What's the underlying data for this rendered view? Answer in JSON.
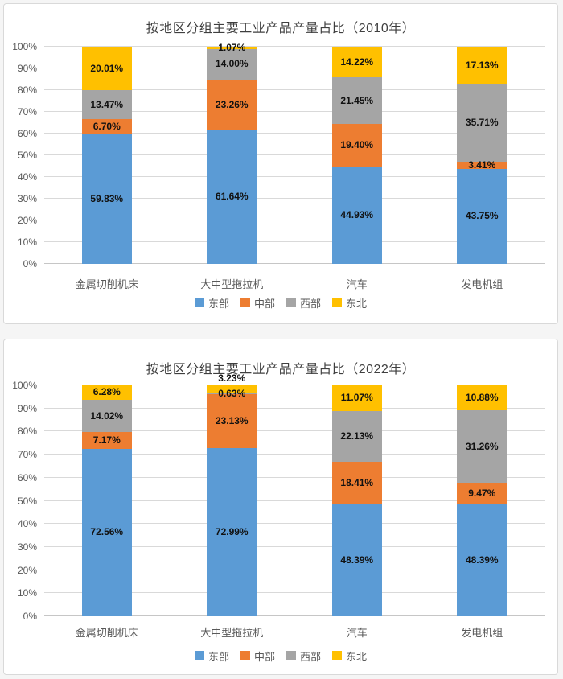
{
  "page": {
    "background": "#f5f5f5",
    "panel_background": "#ffffff",
    "panel_border": "#d9d9d9",
    "gridline_color": "#d9d9d9",
    "axis_text_color": "#595959",
    "title_text_color": "#3f3f3f",
    "data_label_color": "#111111"
  },
  "chart_data": [
    {
      "type": "bar",
      "stacked": true,
      "percent_stacked": true,
      "title": "按地区分组主要工业产品产量占比（2010年）",
      "categories": [
        "金属切削机床",
        "大中型拖拉机",
        "汽车",
        "发电机组"
      ],
      "series": [
        {
          "name": "东部",
          "color": "#5B9BD5",
          "values": [
            59.83,
            61.64,
            44.93,
            43.75
          ]
        },
        {
          "name": "中部",
          "color": "#ED7D31",
          "values": [
            6.7,
            23.26,
            19.4,
            3.41
          ]
        },
        {
          "name": "西部",
          "color": "#A5A5A5",
          "values": [
            13.47,
            14.0,
            21.45,
            35.71
          ]
        },
        {
          "name": "东北",
          "color": "#FFC000",
          "values": [
            20.01,
            1.07,
            14.22,
            17.13
          ]
        }
      ],
      "xlabel": "",
      "ylabel": "",
      "ylim": [
        0,
        100
      ],
      "ytick_step": 10,
      "ytick_suffix": "%",
      "grid": true,
      "data_labels": true,
      "data_label_format": "0.00%",
      "legend_position": "bottom"
    },
    {
      "type": "bar",
      "stacked": true,
      "percent_stacked": true,
      "title": "按地区分组主要工业产品产量占比（2022年）",
      "categories": [
        "金属切削机床",
        "大中型拖拉机",
        "汽车",
        "发电机组"
      ],
      "series": [
        {
          "name": "东部",
          "color": "#5B9BD5",
          "values": [
            72.56,
            72.99,
            48.39,
            48.39
          ]
        },
        {
          "name": "中部",
          "color": "#ED7D31",
          "values": [
            7.17,
            23.13,
            18.41,
            9.47
          ]
        },
        {
          "name": "西部",
          "color": "#A5A5A5",
          "values": [
            14.02,
            0.63,
            22.13,
            31.26
          ]
        },
        {
          "name": "东北",
          "color": "#FFC000",
          "values": [
            6.28,
            3.23,
            11.07,
            10.88
          ],
          "label_above_indices": [
            1
          ]
        }
      ],
      "xlabel": "",
      "ylabel": "",
      "ylim": [
        0,
        100
      ],
      "ytick_step": 10,
      "ytick_suffix": "%",
      "grid": true,
      "data_labels": true,
      "data_label_format": "0.00%",
      "legend_position": "bottom"
    }
  ]
}
